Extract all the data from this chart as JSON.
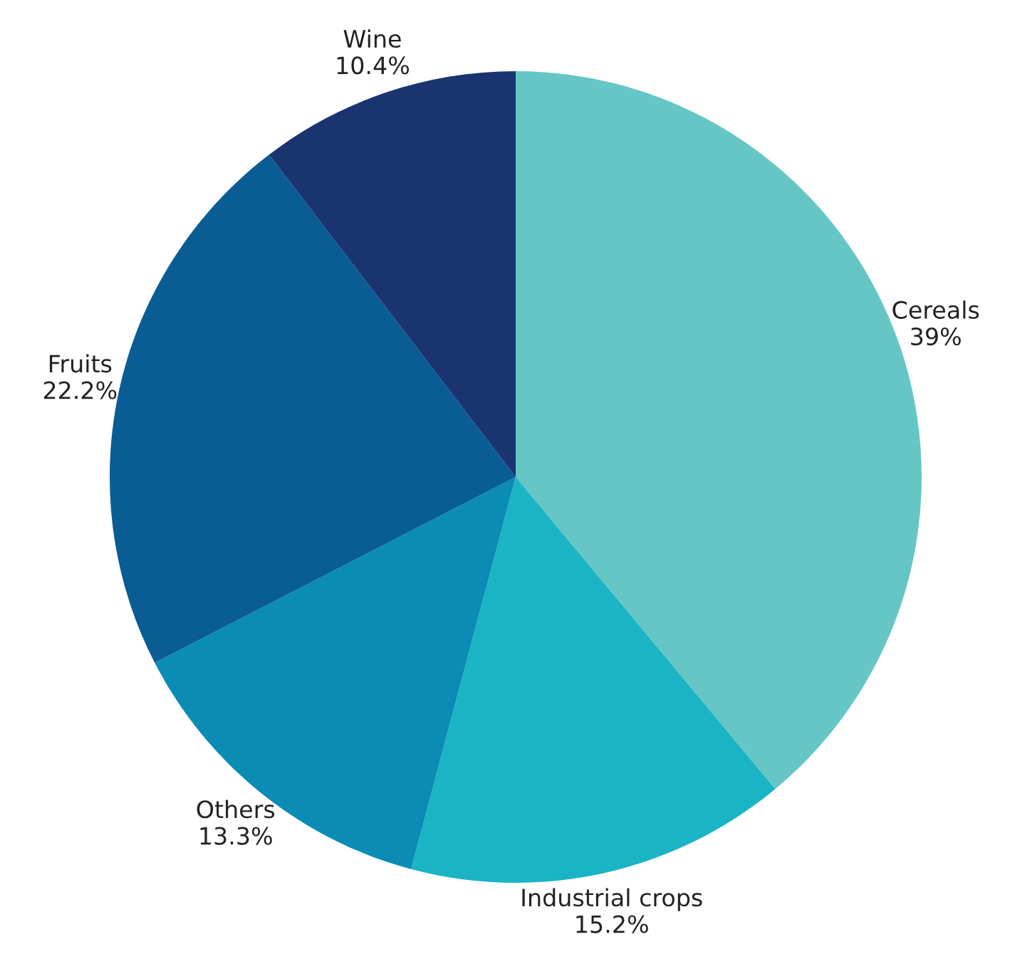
{
  "chart_data": {
    "type": "pie",
    "categories": [
      "Cereals",
      "Industrial crops",
      "Others",
      "Fruits",
      "Wine"
    ],
    "values": [
      39,
      15.2,
      13.3,
      22.2,
      10.4
    ],
    "value_labels": [
      "39%",
      "15.2%",
      "13.3%",
      "22.2%",
      "10.4%"
    ],
    "colors": [
      "#66c6c6",
      "#1ab4c4",
      "#0a8cb4",
      "#0a5c94",
      "#1a3470"
    ]
  }
}
